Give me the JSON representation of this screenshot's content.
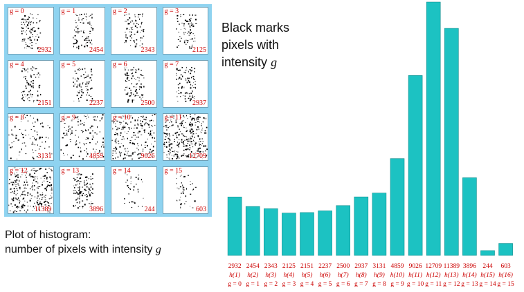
{
  "thumbnails": [
    {
      "g_label": "g = 0",
      "count": "2932"
    },
    {
      "g_label": "g = 1",
      "count": "2454"
    },
    {
      "g_label": "g = 2",
      "count": "2343"
    },
    {
      "g_label": "g = 3",
      "count": "2125"
    },
    {
      "g_label": "g = 4",
      "count": "2151"
    },
    {
      "g_label": "g = 5",
      "count": "2237"
    },
    {
      "g_label": "g = 6",
      "count": "2500"
    },
    {
      "g_label": "g = 7",
      "count": "2937"
    },
    {
      "g_label": "g = 8",
      "count": "3131"
    },
    {
      "g_label": "g = 9",
      "count": "4859"
    },
    {
      "g_label": "g = 10",
      "count": "9026"
    },
    {
      "g_label": "g = 11",
      "count": "12709"
    },
    {
      "g_label": "g = 12",
      "count": "11389"
    },
    {
      "g_label": "g = 13",
      "count": "3896"
    },
    {
      "g_label": "g = 14",
      "count": "244"
    },
    {
      "g_label": "g = 15",
      "count": "603"
    }
  ],
  "caption_top": {
    "line1": "Black marks",
    "line2": "pixels with",
    "line3": "intensity",
    "var": "g"
  },
  "caption_bottom": {
    "line1": "Plot of histogram:",
    "line2": "number of pixels with intensity",
    "var": "g"
  },
  "colors": {
    "bar": "#1cc2c2",
    "label": "#cc0000",
    "panel": "#8fd3f0"
  },
  "chart_data": {
    "type": "bar",
    "title": "",
    "xlabel": "",
    "ylabel": "",
    "ylim": [
      0,
      12709
    ],
    "grid": false,
    "categories": [
      "g = 0",
      "g = 1",
      "g = 2",
      "g = 3",
      "g = 4",
      "g = 5",
      "g = 6",
      "g = 7",
      "g = 8",
      "g = 9",
      "g = 10",
      "g = 11",
      "g = 12",
      "g = 13",
      "g = 14",
      "g = 15"
    ],
    "bin_labels": [
      "h(1)",
      "h(2)",
      "h(3)",
      "h(4)",
      "h(5)",
      "h(6)",
      "h(7)",
      "h(8)",
      "h(9)",
      "h(10)",
      "h(11)",
      "h(12)",
      "h(13)",
      "h(14)",
      "h(15)",
      "h(16)"
    ],
    "values": [
      2932,
      2454,
      2343,
      2125,
      2151,
      2237,
      2500,
      2937,
      3131,
      4859,
      9026,
      12709,
      11389,
      3896,
      244,
      603
    ]
  }
}
